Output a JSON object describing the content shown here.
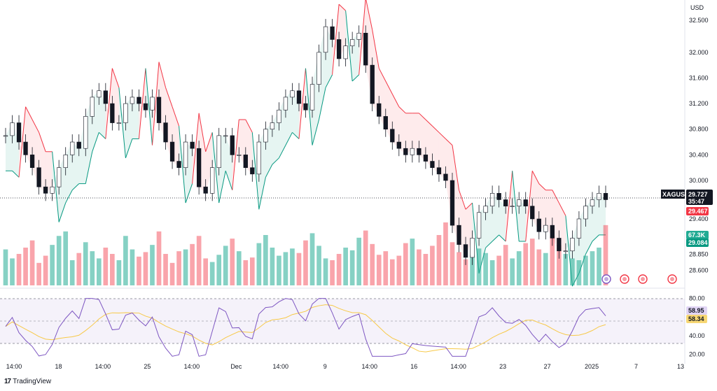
{
  "chart_data": {
    "type": "candlestick",
    "symbol": "XAGUSD",
    "currency": "USD",
    "price_axis": {
      "min": 28.45,
      "max": 32.62,
      "ticks": [
        "32.500",
        "32.000",
        "31.600",
        "31.200",
        "30.800",
        "30.400",
        "30.000",
        "29.400",
        "28.850",
        "28.600"
      ]
    },
    "x_ticks": [
      "14:00",
      "18",
      "14:00",
      "25",
      "14:00",
      "Dec",
      "14:00",
      "9",
      "14:00",
      "16",
      "14:00",
      "23",
      "27",
      "2025",
      "7",
      "13"
    ],
    "last_price": {
      "value": "29.727",
      "countdown": "35:47"
    },
    "supertrend_up_label": "29.467",
    "supertrend_down_label": "29.084",
    "volume_label": "67.3K",
    "rsi": {
      "ticks": [
        "80.00",
        "40.00",
        "20.00"
      ],
      "value": "58.95",
      "ma_value": "58.34",
      "overbought": 70,
      "oversold": 30,
      "min": 16,
      "max": 85
    },
    "closes": [
      30.7,
      30.9,
      30.6,
      30.4,
      30.2,
      29.9,
      29.8,
      29.9,
      30.2,
      30.4,
      30.6,
      30.5,
      31.0,
      31.3,
      31.4,
      31.2,
      30.9,
      30.9,
      31.2,
      31.3,
      31.2,
      31.1,
      31.3,
      30.9,
      30.6,
      30.3,
      30.2,
      30.6,
      30.5,
      29.9,
      29.8,
      30.2,
      30.7,
      30.7,
      30.4,
      30.4,
      30.2,
      30.1,
      30.6,
      30.8,
      30.9,
      31.1,
      31.3,
      31.4,
      31.2,
      31.1,
      31.5,
      32.0,
      32.4,
      32.2,
      31.9,
      32.1,
      32.2,
      32.3,
      31.8,
      31.2,
      31.0,
      30.8,
      30.6,
      30.5,
      30.4,
      30.5,
      30.4,
      30.3,
      30.2,
      30.1,
      30.0,
      29.3,
      29.0,
      28.8,
      29.1,
      29.5,
      29.6,
      29.8,
      29.7,
      29.6,
      29.6,
      29.7,
      29.6,
      29.4,
      29.2,
      29.3,
      29.1,
      28.9,
      28.9,
      29.1,
      29.4,
      29.6,
      29.7,
      29.8,
      29.7
    ],
    "volumes": [
      40,
      30,
      35,
      42,
      50,
      25,
      33,
      45,
      55,
      60,
      28,
      36,
      48,
      38,
      30,
      42,
      35,
      28,
      55,
      40,
      32,
      37,
      45,
      60,
      35,
      25,
      38,
      40,
      46,
      55,
      30,
      26,
      34,
      44,
      52,
      38,
      28,
      31,
      47,
      56,
      42,
      33,
      37,
      41,
      36,
      50,
      58,
      44,
      30,
      28,
      35,
      42,
      39,
      53,
      61,
      46,
      34,
      38,
      29,
      33,
      47,
      52,
      40,
      35,
      44,
      56,
      70,
      48,
      37,
      29,
      34,
      41,
      36,
      28,
      33,
      45,
      30,
      38,
      47,
      52,
      40,
      36,
      55,
      45,
      35,
      30,
      28,
      33,
      38,
      42,
      67
    ]
  }
}
